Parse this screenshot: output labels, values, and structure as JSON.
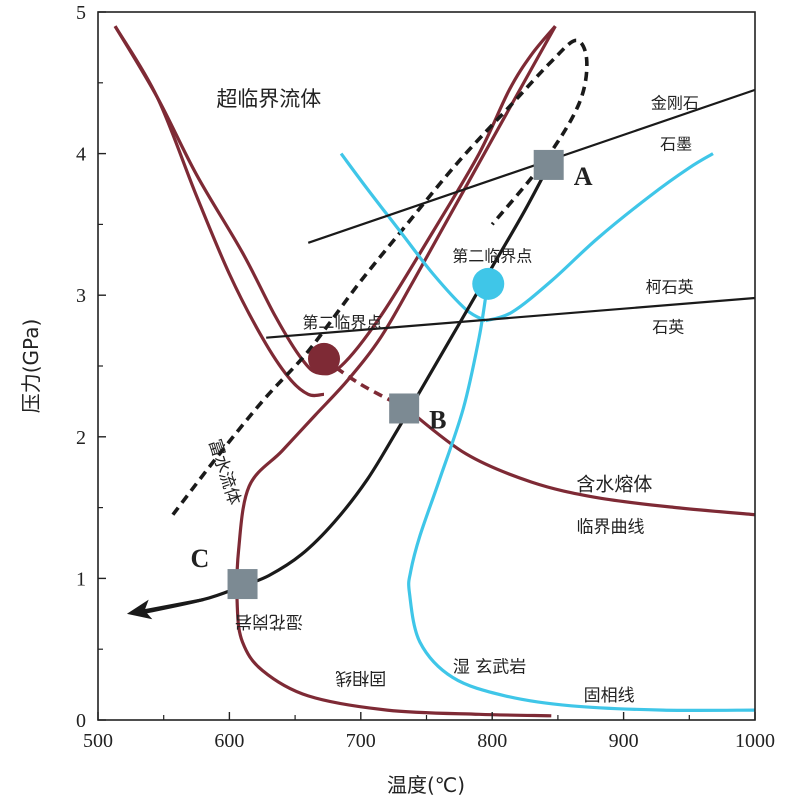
{
  "chart_data": {
    "type": "line",
    "title": "",
    "xlabel": "温度(℃)",
    "ylabel": "压力(GPa)",
    "xlim": [
      500,
      1000
    ],
    "ylim": [
      0,
      5
    ],
    "xticks": [
      500,
      600,
      700,
      800,
      900,
      1000
    ],
    "yticks": [
      0,
      1,
      2,
      3,
      4,
      5
    ],
    "grid": false,
    "series": [
      {
        "name": "湿花岗岩固相线",
        "color": "#7e2a35",
        "style": "solid",
        "x": [
          513,
          545,
          575,
          610,
          635,
          655,
          668,
          685,
          715,
          755,
          790,
          813,
          830,
          848
        ],
        "y": [
          4.9,
          4.4,
          3.85,
          3.3,
          2.85,
          2.55,
          2.45,
          2.5,
          2.85,
          3.45,
          4.0,
          4.45,
          4.7,
          4.9
        ]
      },
      {
        "name": "",
        "color": "#7e2a35",
        "style": "solid",
        "x": [
          513,
          545,
          575,
          600,
          625,
          645,
          660,
          672
        ],
        "y": [
          4.9,
          4.4,
          3.7,
          3.15,
          2.7,
          2.42,
          2.3,
          2.3
        ]
      },
      {
        "name": "",
        "color": "#7e2a35",
        "style": "solid",
        "x": [
          848,
          830,
          800,
          770,
          740,
          715,
          690,
          665,
          640,
          615,
          607,
          606,
          610,
          625,
          660,
          720,
          790,
          845
        ],
        "y": [
          4.9,
          4.6,
          4.1,
          3.6,
          3.1,
          2.7,
          2.4,
          2.15,
          1.9,
          1.65,
          1.2,
          0.8,
          0.55,
          0.35,
          0.17,
          0.07,
          0.04,
          0.03
        ]
      },
      {
        "name": "含水熔体临界曲线",
        "color": "#7e2a35",
        "style": "dashed",
        "x": [
          672,
          700,
          735
        ],
        "y": [
          2.55,
          2.37,
          2.2
        ]
      },
      {
        "name": "",
        "color": "#7e2a35",
        "style": "solid",
        "x": [
          735,
          780,
          830,
          880,
          940,
          1000
        ],
        "y": [
          2.2,
          1.88,
          1.68,
          1.57,
          1.5,
          1.45
        ]
      },
      {
        "name": "富水流体",
        "color": "#1a1a1a",
        "style": "dashed",
        "x": [
          557,
          590,
          625,
          655,
          672,
          700,
          735,
          775,
          815,
          845,
          864,
          872,
          866,
          840,
          800
        ],
        "y": [
          1.45,
          1.85,
          2.25,
          2.55,
          2.75,
          3.1,
          3.5,
          3.95,
          4.35,
          4.65,
          4.8,
          4.65,
          4.35,
          3.95,
          3.5
        ]
      },
      {
        "name": "湿玄武岩固相线",
        "color": "#3fc6e8",
        "style": "solid",
        "x": [
          685,
          705,
          730,
          755,
          780,
          795
        ],
        "y": [
          4.0,
          3.75,
          3.45,
          3.15,
          2.9,
          2.82
        ]
      },
      {
        "name": "",
        "color": "#3fc6e8",
        "style": "solid",
        "x": [
          795,
          815,
          845,
          880,
          920,
          950,
          968
        ],
        "y": [
          2.82,
          2.88,
          3.1,
          3.4,
          3.7,
          3.9,
          4.0
        ]
      },
      {
        "name": "",
        "color": "#3fc6e8",
        "style": "solid",
        "x": [
          796,
          790,
          778,
          760,
          745,
          738,
          737,
          745,
          770,
          810,
          860,
          930,
          1000
        ],
        "y": [
          3.05,
          2.7,
          2.2,
          1.7,
          1.3,
          1.05,
          0.9,
          0.55,
          0.3,
          0.17,
          0.1,
          0.07,
          0.07
        ]
      },
      {
        "name": "",
        "color": "#1a1a1a",
        "style": "solid",
        "x": [
          845,
          825,
          800,
          775,
          750,
          728,
          705,
          680,
          655,
          630,
          608,
          580,
          530
        ],
        "y": [
          3.95,
          3.6,
          3.2,
          2.8,
          2.4,
          2.05,
          1.7,
          1.4,
          1.17,
          1.02,
          0.94,
          0.85,
          0.75
        ]
      },
      {
        "name": "金刚石 石墨",
        "color": "#1a1a1a",
        "style": "solid",
        "x": [
          660,
          1000
        ],
        "y": [
          3.37,
          4.45
        ]
      },
      {
        "name": "柯石英 石英",
        "color": "#1a1a1a",
        "style": "solid",
        "x": [
          628,
          1000
        ],
        "y": [
          2.7,
          2.98
        ]
      }
    ],
    "critical_points": [
      {
        "label": "第二临界点",
        "x": 672,
        "y": 2.55,
        "color": "#7e2a35"
      },
      {
        "label": "第二临界点",
        "x": 797,
        "y": 3.08,
        "color": "#3fc6e8"
      }
    ],
    "markers": [
      {
        "label": "A",
        "x": 843,
        "y": 3.92,
        "color": "#7c8a93"
      },
      {
        "label": "B",
        "x": 733,
        "y": 2.2,
        "color": "#7c8a93"
      },
      {
        "label": "C",
        "x": 610,
        "y": 0.96,
        "color": "#7c8a93"
      }
    ],
    "annotations": [
      {
        "text": "超临界流体",
        "x": 630,
        "y": 4.38,
        "size": 21,
        "rotate": 0
      },
      {
        "text": "金刚石",
        "x": 939,
        "y": 4.35,
        "size": 16,
        "rotate": 0
      },
      {
        "text": "石墨",
        "x": 940,
        "y": 4.06,
        "size": 16,
        "rotate": 0
      },
      {
        "text": "柯石英",
        "x": 935,
        "y": 3.05,
        "size": 16,
        "rotate": 0
      },
      {
        "text": "石英",
        "x": 934,
        "y": 2.77,
        "size": 16,
        "rotate": 0
      },
      {
        "text": "第二临界点",
        "x": 686,
        "y": 2.8,
        "size": 16,
        "rotate": 0
      },
      {
        "text": "第二临界点",
        "x": 800,
        "y": 3.27,
        "size": 16,
        "rotate": 0
      },
      {
        "text": "含水熔体",
        "x": 893,
        "y": 1.66,
        "size": 19,
        "rotate": 0
      },
      {
        "text": "临界曲线",
        "x": 890,
        "y": 1.36,
        "size": 17,
        "rotate": 0
      },
      {
        "text": "富水流体",
        "x": 596,
        "y": 1.75,
        "size": 17,
        "rotate": 72
      },
      {
        "text": "湿花岗岩",
        "x": 630,
        "y": 0.7,
        "size": 17,
        "rotate": 180
      },
      {
        "text": "固相线",
        "x": 700,
        "y": 0.3,
        "size": 17,
        "rotate": 180
      },
      {
        "text": "湿 玄武岩",
        "x": 798,
        "y": 0.37,
        "size": 17,
        "rotate": 0
      },
      {
        "text": "固相线",
        "x": 889,
        "y": 0.17,
        "size": 17,
        "rotate": 0
      }
    ],
    "arrow": {
      "x": [
        580,
        522
      ],
      "y": [
        0.85,
        0.75
      ],
      "color": "#1a1a1a"
    }
  }
}
